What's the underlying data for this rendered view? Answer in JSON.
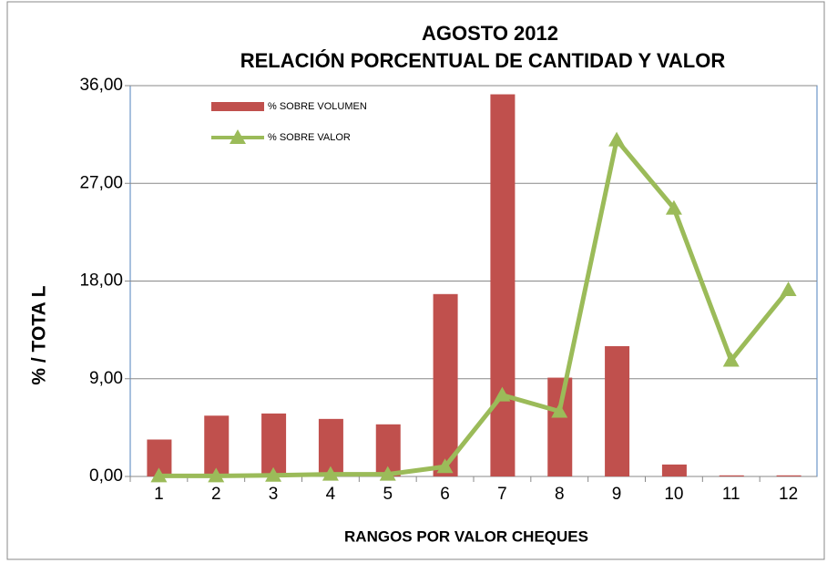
{
  "chart_data": {
    "type": "bar",
    "title": "AGOSTO  2012",
    "subtitle": "RELACIÓN PORCENTUAL  DE CANTIDAD  Y VALOR",
    "x_label": "RANGOS POR VALOR CHEQUES",
    "y_label": "%  /    TOTA L",
    "categories": [
      "1",
      "2",
      "3",
      "4",
      "5",
      "6",
      "7",
      "8",
      "9",
      "10",
      "11",
      "12"
    ],
    "series": [
      {
        "name": "% SOBRE VOLUMEN",
        "type": "bar",
        "color": "#c0504d",
        "values": [
          3.4,
          5.6,
          5.8,
          5.3,
          4.8,
          16.8,
          35.2,
          9.1,
          12.0,
          1.1,
          0.1,
          0.1
        ]
      },
      {
        "name": "% SOBRE VALOR",
        "type": "line",
        "color": "#9bbb59",
        "values": [
          0.05,
          0.05,
          0.1,
          0.2,
          0.2,
          0.9,
          7.5,
          6.0,
          31.0,
          24.7,
          10.7,
          17.2
        ]
      }
    ],
    "ylim": [
      0,
      36
    ],
    "yticks": [
      {
        "value": 0,
        "label": "0,00"
      },
      {
        "value": 9,
        "label": "9,00"
      },
      {
        "value": 18,
        "label": "18,00"
      },
      {
        "value": 27,
        "label": "27,00"
      },
      {
        "value": 36,
        "label": "36,00"
      }
    ],
    "grid": true,
    "legend": "top-left"
  }
}
